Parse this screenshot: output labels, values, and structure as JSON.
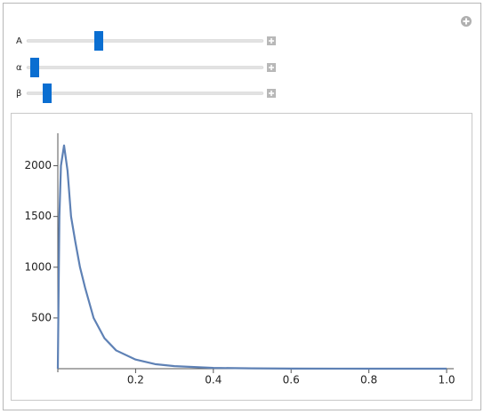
{
  "controls": [
    {
      "label": "A"
    },
    {
      "label": "α"
    },
    {
      "label": "β"
    }
  ],
  "chart_data": {
    "type": "line",
    "x": [
      0,
      0.004,
      0.008,
      0.016,
      0.025,
      0.034,
      0.045,
      0.057,
      0.07,
      0.092,
      0.12,
      0.15,
      0.2,
      0.25,
      0.3,
      0.4,
      0.5,
      0.6,
      0.8,
      1.0
    ],
    "series": [
      {
        "color": "#5e81b5",
        "values": [
          0,
          1500,
          2000,
          2200,
          1950,
          1500,
          1250,
          1000,
          800,
          500,
          300,
          180,
          90,
          45,
          25,
          8,
          3,
          1,
          0,
          0
        ]
      }
    ],
    "xlim": [
      0,
      1
    ],
    "ylim": [
      0,
      2320
    ],
    "xticks": [
      0.2,
      0.4,
      0.6,
      0.8,
      {
        "value": 1.0,
        "label": "1.0"
      }
    ],
    "yticks": [
      500,
      1000,
      1500,
      2000
    ]
  }
}
